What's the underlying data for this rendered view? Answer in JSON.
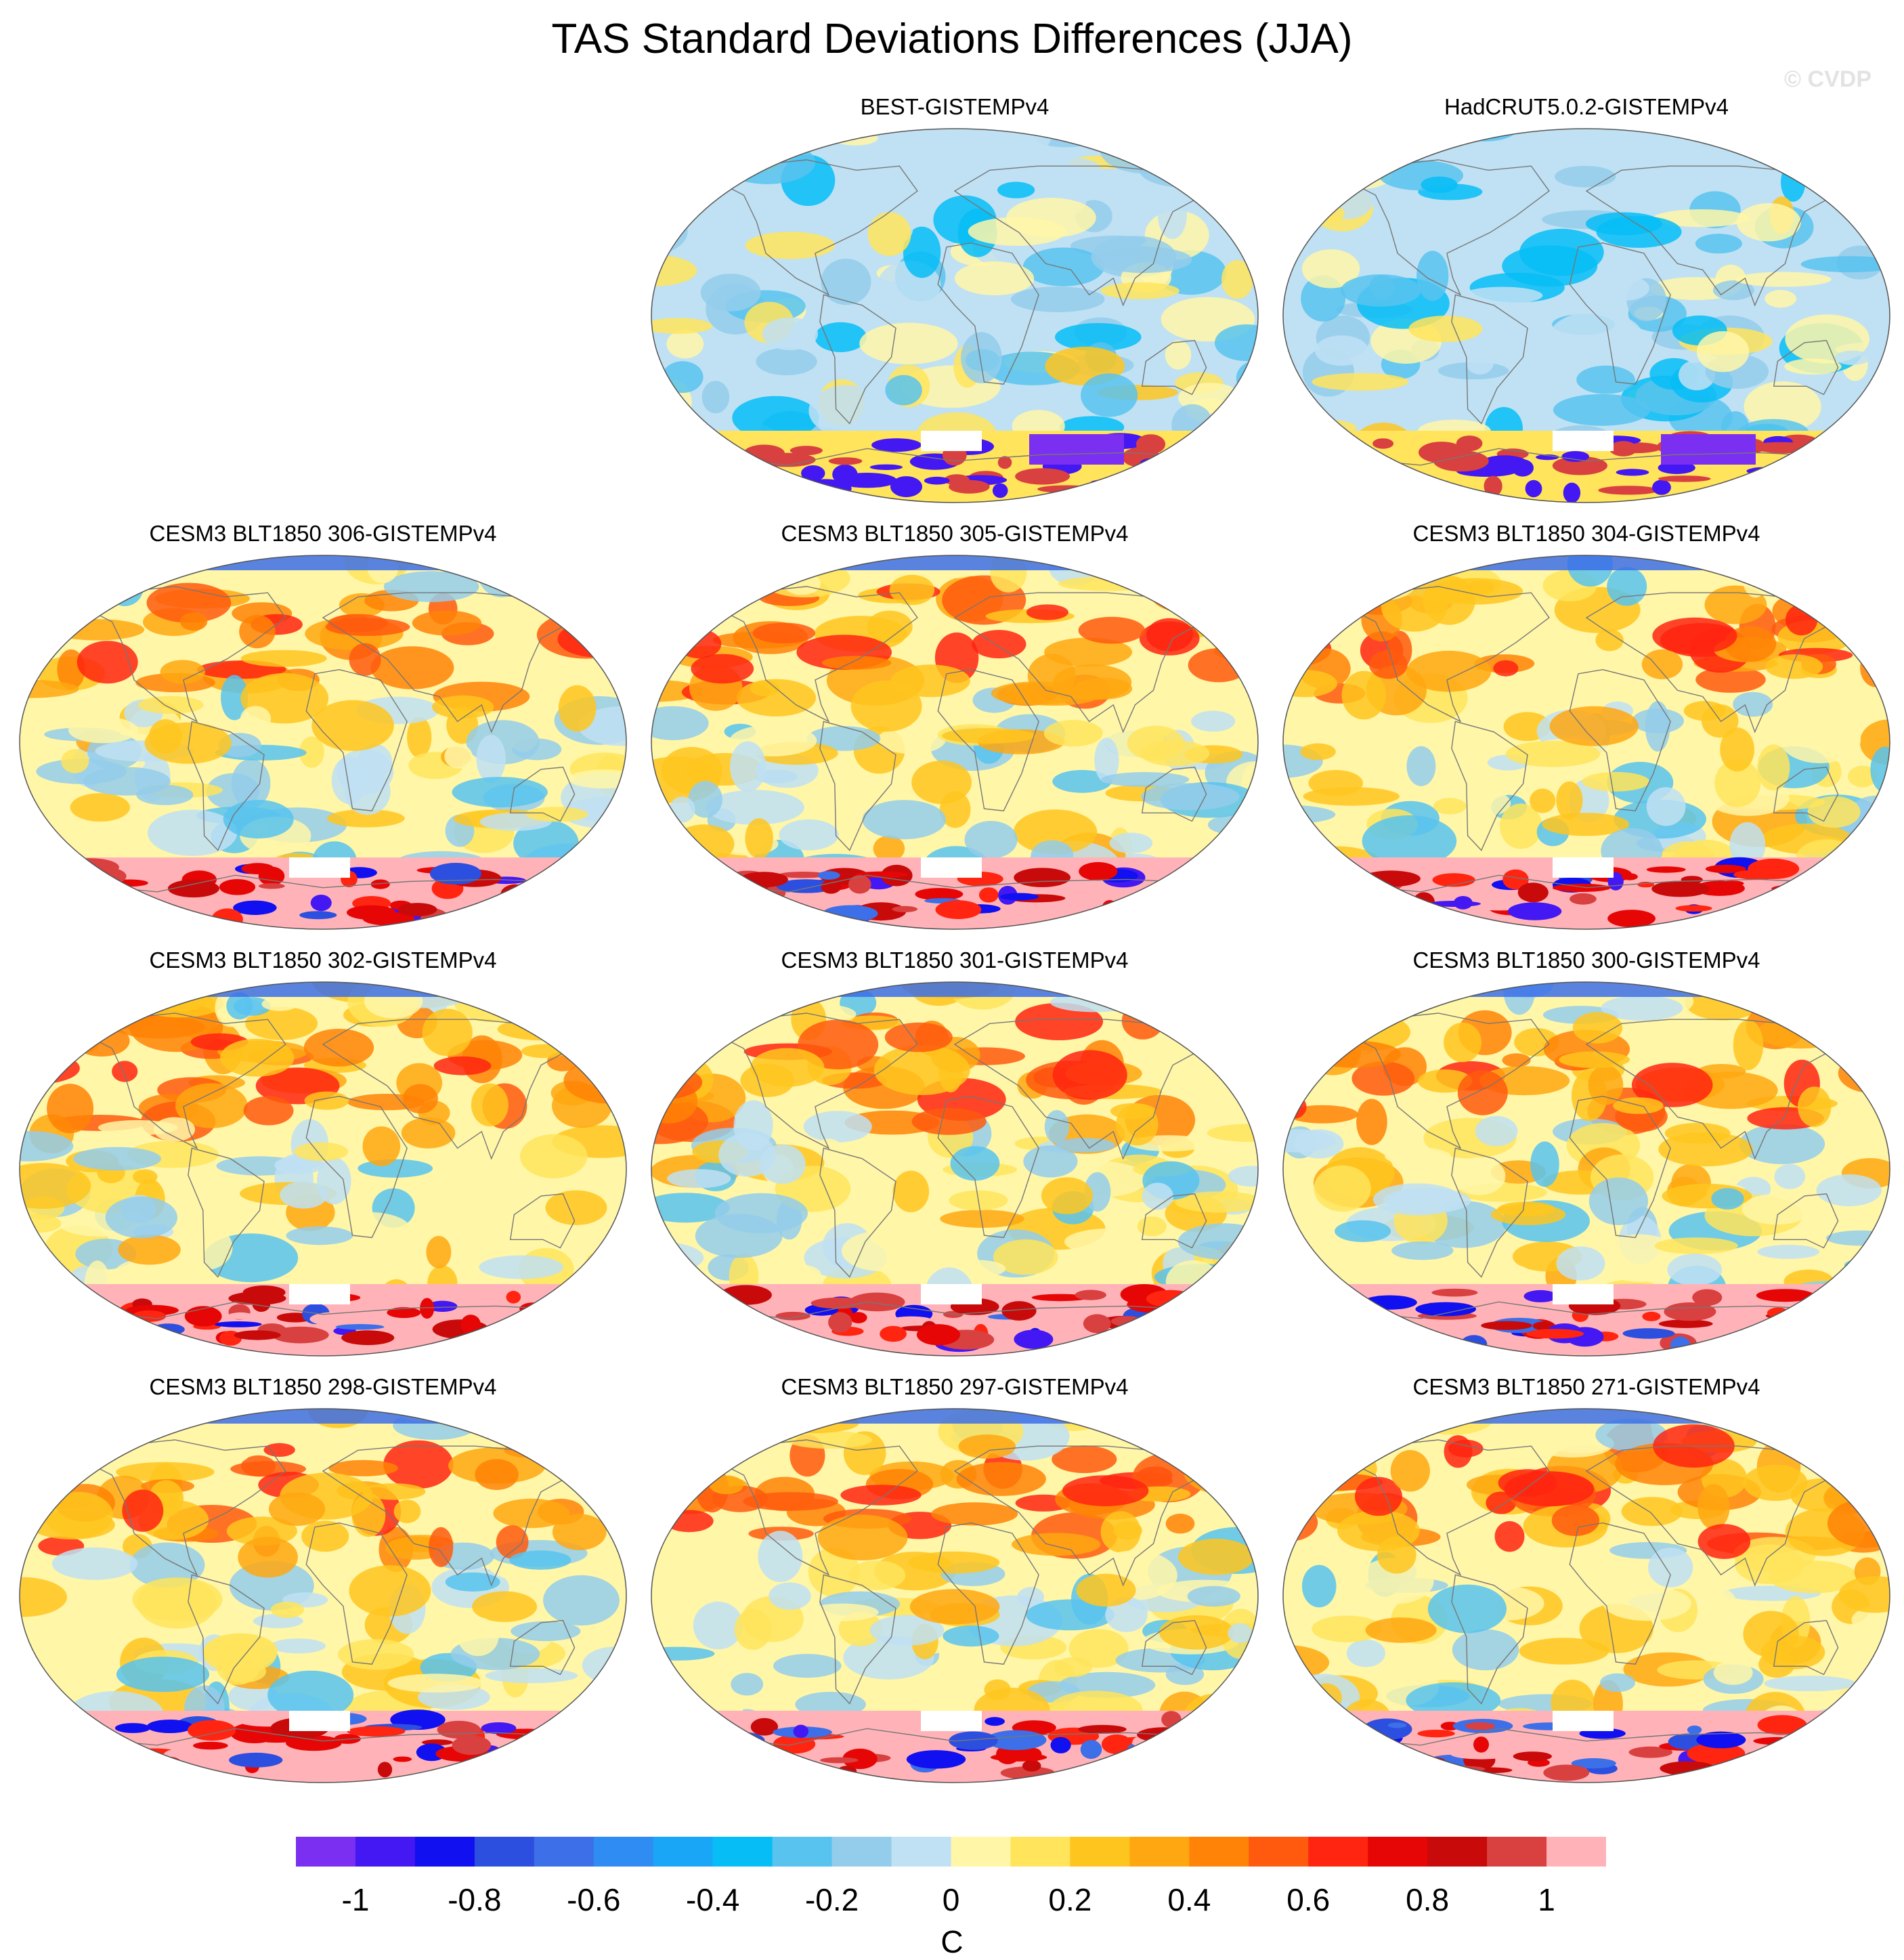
{
  "title": "TAS Standard Deviations Differences (JJA)",
  "watermark": "© CVDP",
  "projection": "robinson-pacific-centered",
  "panels": [
    {
      "label": "BEST-GISTEMPv4",
      "style": "obs",
      "seed": 11
    },
    {
      "label": "HadCRUT5.0.2-GISTEMPv4",
      "style": "obs2",
      "seed": 23
    },
    {
      "label": "CESM3 BLT1850 306-GISTEMPv4",
      "style": "model",
      "seed": 31
    },
    {
      "label": "CESM3 BLT1850 305-GISTEMPv4",
      "style": "model",
      "seed": 37
    },
    {
      "label": "CESM3 BLT1850 304-GISTEMPv4",
      "style": "model",
      "seed": 41
    },
    {
      "label": "CESM3 BLT1850 302-GISTEMPv4",
      "style": "model",
      "seed": 47
    },
    {
      "label": "CESM3 BLT1850 301-GISTEMPv4",
      "style": "model",
      "seed": 53
    },
    {
      "label": "CESM3 BLT1850 300-GISTEMPv4",
      "style": "model",
      "seed": 59
    },
    {
      "label": "CESM3 BLT1850 298-GISTEMPv4",
      "style": "model",
      "seed": 61
    },
    {
      "label": "CESM3 BLT1850 297-GISTEMPv4",
      "style": "model",
      "seed": 67
    },
    {
      "label": "CESM3 BLT1850 271-GISTEMPv4",
      "style": "model",
      "seed": 71
    }
  ],
  "colorbar": {
    "unit": "C",
    "ticks": [
      "-1",
      "-0.8",
      "-0.6",
      "-0.4",
      "-0.2",
      "0",
      "0.2",
      "0.4",
      "0.6",
      "0.8",
      "1"
    ],
    "colors": [
      "#7b2ff0",
      "#4318f2",
      "#1010f0",
      "#2c4fe0",
      "#3c6fe8",
      "#2f8cf2",
      "#1aa6f7",
      "#06bdf6",
      "#58c3ef",
      "#94cceb",
      "#bfe1f3",
      "#fff6a8",
      "#ffe45c",
      "#ffc51f",
      "#ffa711",
      "#ff8306",
      "#ff5a0e",
      "#ff2510",
      "#e60606",
      "#c80a0a",
      "#d94040",
      "#ffb3b8"
    ]
  }
}
